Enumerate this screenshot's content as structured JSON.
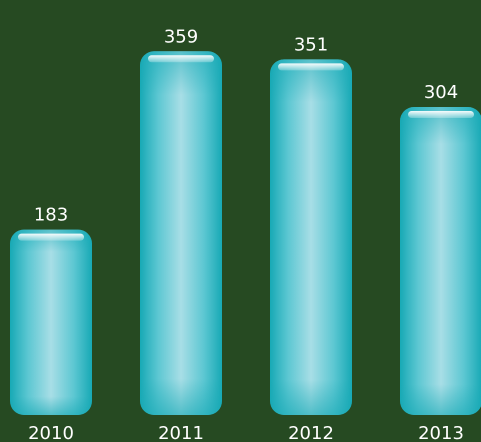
{
  "background": "#264a22",
  "chart_data": {
    "type": "bar",
    "title": "",
    "xlabel": "",
    "ylabel": "",
    "categories": [
      "2010",
      "2011",
      "2012",
      "2013"
    ],
    "values": [
      183,
      359,
      351,
      304
    ],
    "ylim": [
      0,
      380
    ],
    "grid": false,
    "legend": "none",
    "bar_style": "glossy rounded capsule",
    "colors": {
      "bar_edge": "#18aeb9",
      "bar_center": "#a6dde6",
      "bar_highlight": "#e6f7f9",
      "label": "#ffffff"
    }
  }
}
